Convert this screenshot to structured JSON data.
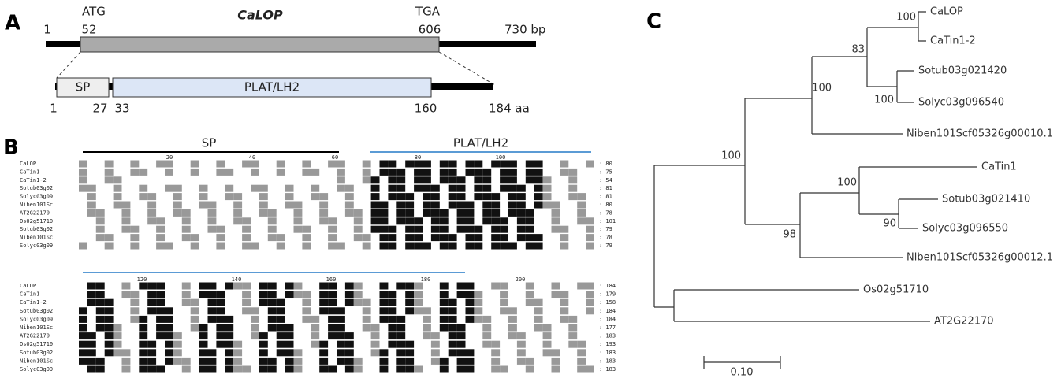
{
  "panel_a": {
    "label": "A",
    "gene": "CaLOP",
    "start_codon": "ATG",
    "stop_codon": "TGA",
    "gene_positions": [
      "1",
      "52",
      "606",
      "730 bp"
    ],
    "domains": [
      "SP",
      "PLAT/LH2"
    ],
    "protein_positions": [
      "1",
      "27",
      "33",
      "160",
      "184 aa"
    ]
  },
  "panel_b": {
    "label": "B",
    "domains": [
      "SP",
      "PLAT/LH2"
    ],
    "blocks": [
      {
        "ruler": [
          "20",
          "40",
          "60",
          "80",
          "100"
        ],
        "names": [
          "CaLOP",
          "CaTin1",
          "CaTin1-2",
          "Sotub03g02",
          "Solyc03g09",
          "Niben101Sc",
          "AT2G22170",
          "Os02g51710",
          "Sotub03g02",
          "Niben101Sc",
          "Solyc03g09"
        ],
        "ends": [
          ": 80",
          ": 75",
          ": 54",
          ": 81",
          ": 81",
          ": 80",
          ": 78",
          ": 101",
          ": 79",
          ": 78",
          ": 79"
        ]
      },
      {
        "ruler": [
          "120",
          "140",
          "160",
          "180",
          "200"
        ],
        "names": [
          "CaLOP",
          "CaTin1",
          "CaTin1-2",
          "Sotub03g02",
          "Solyc03g09",
          "Niben101Sc",
          "AT2G22170",
          "Os02g51710",
          "Sotub03g02",
          "Niben101Sc",
          "Solyc03g09"
        ],
        "ends": [
          ": 184",
          ": 179",
          ": 158",
          ": 184",
          ": 184",
          ": 177",
          ": 183",
          ": 193",
          ": 183",
          ": 183",
          ": 183"
        ]
      }
    ]
  },
  "panel_c": {
    "label": "C",
    "leaves": [
      "CaLOP",
      "CaTin1-2",
      "Sotub03g021420",
      "Solyc03g096540",
      "Niben101Scf05326g00010.1",
      "CaTin1",
      "Sotub03g021410",
      "Solyc03g096550",
      "Niben101Scf05326g00012.1",
      "Os02g51710",
      "AT2G22170"
    ],
    "bootstraps": [
      "100",
      "83",
      "100",
      "100",
      "100",
      "100",
      "90",
      "98"
    ],
    "scale": "0.10"
  }
}
